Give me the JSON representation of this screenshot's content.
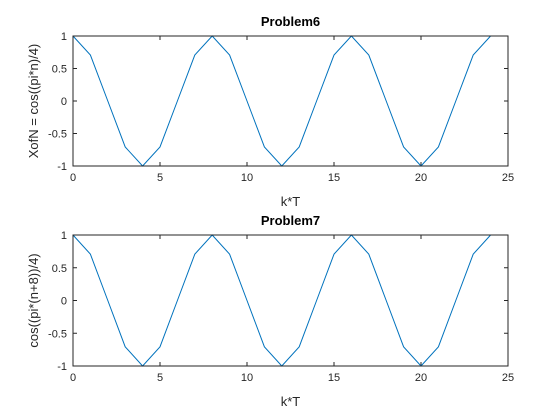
{
  "chart_data": [
    {
      "type": "line",
      "title": "Problem6",
      "xlabel": "k*T",
      "ylabel": "XofN = cos((pi*n)/4)",
      "xlim": [
        0,
        25
      ],
      "ylim": [
        -1,
        1
      ],
      "xticks": [
        "0",
        "5",
        "10",
        "15",
        "20",
        "25"
      ],
      "yticks": [
        "-1",
        "-0.5",
        "0",
        "0.5",
        "1"
      ],
      "grid": false,
      "line_color": "#0072BD",
      "x": [
        0,
        1,
        2,
        3,
        4,
        5,
        6,
        7,
        8,
        9,
        10,
        11,
        12,
        13,
        14,
        15,
        16,
        17,
        18,
        19,
        20,
        21,
        22,
        23,
        24
      ],
      "y": [
        1,
        0.7071,
        0,
        -0.7071,
        -1,
        -0.7071,
        0,
        0.7071,
        1,
        0.7071,
        0,
        -0.7071,
        -1,
        -0.7071,
        0,
        0.7071,
        1,
        0.7071,
        0,
        -0.7071,
        -1,
        -0.7071,
        0,
        0.7071,
        1
      ]
    },
    {
      "type": "line",
      "title": "Problem7",
      "xlabel": "k*T",
      "ylabel": "cos((pi*(n+8))/4)",
      "xlim": [
        0,
        25
      ],
      "ylim": [
        -1,
        1
      ],
      "xticks": [
        "0",
        "5",
        "10",
        "15",
        "20",
        "25"
      ],
      "yticks": [
        "-1",
        "-0.5",
        "0",
        "0.5",
        "1"
      ],
      "grid": false,
      "line_color": "#0072BD",
      "x": [
        0,
        1,
        2,
        3,
        4,
        5,
        6,
        7,
        8,
        9,
        10,
        11,
        12,
        13,
        14,
        15,
        16,
        17,
        18,
        19,
        20,
        21,
        22,
        23,
        24
      ],
      "y": [
        1,
        0.7071,
        0,
        -0.7071,
        -1,
        -0.7071,
        0,
        0.7071,
        1,
        0.7071,
        0,
        -0.7071,
        -1,
        -0.7071,
        0,
        0.7071,
        1,
        0.7071,
        0,
        -0.7071,
        -1,
        -0.7071,
        0,
        0.7071,
        1
      ]
    }
  ]
}
